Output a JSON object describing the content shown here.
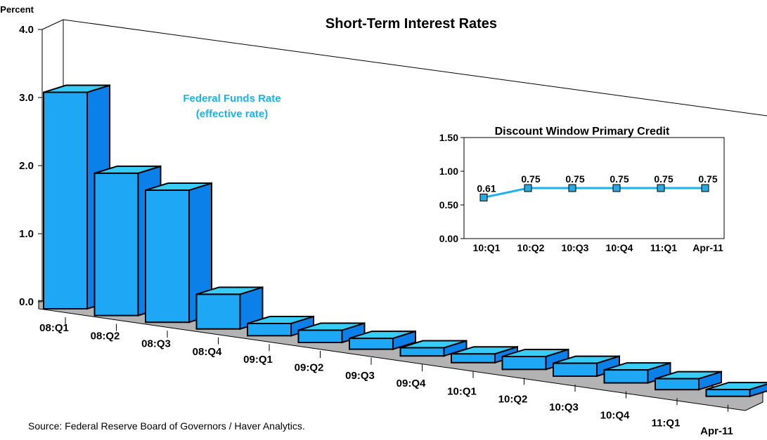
{
  "chart_data": [
    {
      "type": "bar",
      "title": "Short-Term Interest Rates",
      "ylabel": "Percent",
      "annotations": [
        "Federal Funds Rate",
        "(effective rate)"
      ],
      "source": "Source: Federal Reserve Board of Governors / Haver Analytics.",
      "categories": [
        "08:Q1",
        "08:Q2",
        "08:Q3",
        "08:Q4",
        "09:Q1",
        "09:Q2",
        "09:Q3",
        "09:Q4",
        "10:Q1",
        "10:Q2",
        "10:Q3",
        "10:Q4",
        "11:Q1",
        "Apr-11"
      ],
      "values": [
        3.18,
        2.09,
        1.94,
        0.51,
        0.18,
        0.18,
        0.16,
        0.12,
        0.13,
        0.19,
        0.19,
        0.19,
        0.16,
        0.1
      ],
      "color": "#1ea7f5",
      "ylim": [
        0,
        4
      ],
      "yticks": [
        {
          "value": 0,
          "label": "0.0"
        },
        {
          "value": 1,
          "label": "1.0"
        },
        {
          "value": 2,
          "label": "2.0"
        },
        {
          "value": 3,
          "label": "3.0"
        },
        {
          "value": 4,
          "label": "4.0"
        }
      ]
    },
    {
      "type": "line",
      "title": "Discount Window Primary Credit",
      "categories": [
        "10:Q1",
        "10:Q2",
        "10:Q3",
        "10:Q4",
        "11:Q1",
        "Apr-11"
      ],
      "values": [
        0.61,
        0.75,
        0.75,
        0.75,
        0.75,
        0.75
      ],
      "color": "#1ab2f0",
      "ylim": [
        0,
        1.5
      ],
      "yticks": [
        {
          "value": 0,
          "label": "0.00"
        },
        {
          "value": 0.5,
          "label": "0.50"
        },
        {
          "value": 1,
          "label": "1.00"
        },
        {
          "value": 1.5,
          "label": "1.50"
        }
      ]
    }
  ]
}
